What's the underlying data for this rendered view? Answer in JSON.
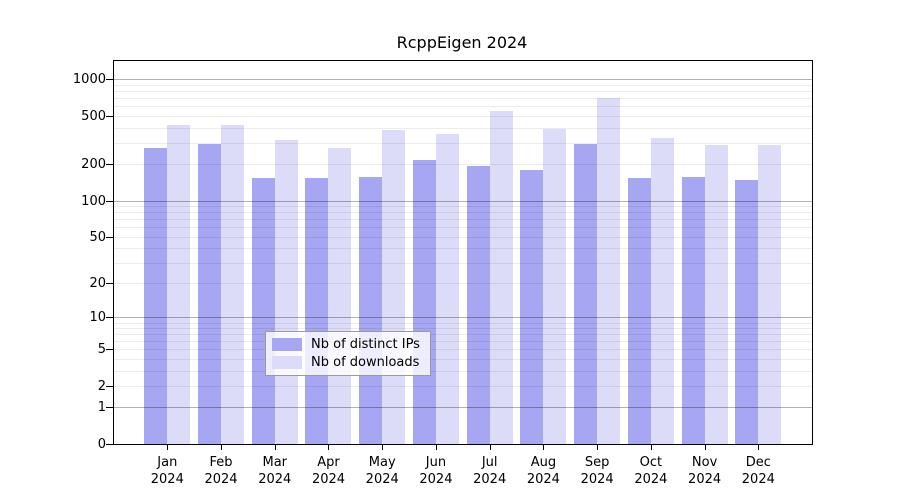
{
  "title": "RcppEigen 2024",
  "chart_data": {
    "type": "bar",
    "title": "RcppEigen 2024",
    "categories": [
      "Jan",
      "Feb",
      "Mar",
      "Apr",
      "May",
      "Jun",
      "Jul",
      "Aug",
      "Sep",
      "Oct",
      "Nov",
      "Dec"
    ],
    "year_label": "2024",
    "series": [
      {
        "name": "Nb of distinct IPs",
        "color": "#a6a6f2",
        "values": [
          273,
          293,
          155,
          153,
          156,
          218,
          193,
          178,
          295,
          155,
          157,
          147
        ]
      },
      {
        "name": "Nb of downloads",
        "color": "#dcdcf8",
        "values": [
          422,
          424,
          316,
          271,
          380,
          356,
          548,
          391,
          700,
          330,
          287,
          287
        ]
      }
    ],
    "xlabel": "",
    "ylabel": "",
    "yticks": [
      0,
      1,
      2,
      5,
      10,
      20,
      50,
      100,
      200,
      500,
      1000
    ],
    "major_gridlines": [
      1,
      10,
      100,
      1000
    ],
    "scale": "log1p",
    "ymax_top": 1420,
    "ylim": [
      0,
      1420
    ],
    "grid": true,
    "legend_position": "inside-bottom-center",
    "legend": [
      "Nb of distinct IPs",
      "Nb of downloads"
    ]
  },
  "colors": {
    "distinct_ips_bar": "#a6a6f2",
    "downloads_bar": "#dcdcf8",
    "plot_border": "#000000",
    "minor_grid": "#ececec",
    "major_grid": "#b3b3b3",
    "background": "#ffffff"
  }
}
